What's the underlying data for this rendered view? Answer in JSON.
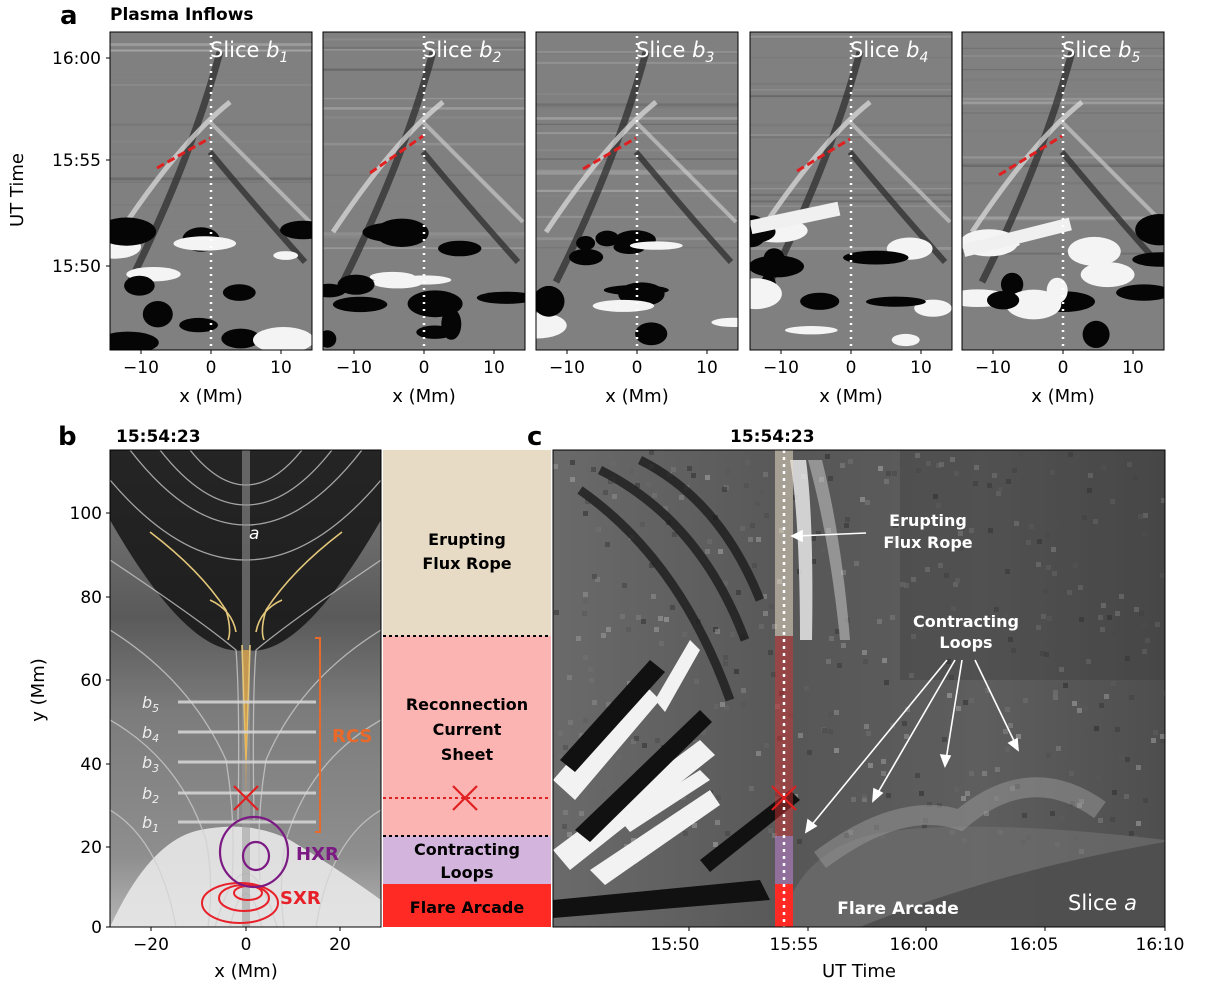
{
  "panel_a": {
    "letter": "a",
    "title": "Plasma Inflows",
    "ylabel": "UT Time",
    "yticks": [
      "16:00",
      "15:55",
      "15:50"
    ],
    "xlabel": "x (Mm)",
    "xticks": [
      "−10",
      "0",
      "10"
    ],
    "slices": [
      {
        "name": "Slice ",
        "sub": "1"
      },
      {
        "name": "Slice ",
        "sub": "2"
      },
      {
        "name": "Slice ",
        "sub": "3"
      },
      {
        "name": "Slice ",
        "sub": "4"
      },
      {
        "name": "Slice ",
        "sub": "5"
      }
    ]
  },
  "panel_b": {
    "letter": "b",
    "time": "15:54:23",
    "ylabel": "y (Mm)",
    "yticks": [
      "100",
      "80",
      "60",
      "40",
      "20",
      "0"
    ],
    "xlabel": "x (Mm)",
    "xticks": [
      "−20",
      "0",
      "20"
    ],
    "slice_label": "a",
    "slice_marks": [
      "b5",
      "b4",
      "b3",
      "b2",
      "b1"
    ],
    "annotations": {
      "rcs": "RCS",
      "hxr": "HXR",
      "sxr": "SXR"
    },
    "colors": {
      "rcs": "#e8692a",
      "hxr": "#7b1a83",
      "sxr": "#e8202a",
      "x_point": "#e02020"
    }
  },
  "legend_column": {
    "erupting": "Erupting Flux Rope",
    "rcs": "Reconnection Current Sheet",
    "contracting": "Contracting Loops",
    "arcade": "Flare Arcade",
    "colors": {
      "erupting": "#e8dbc6",
      "rcs": "#fbb4b2",
      "contracting": "#d2b4dd",
      "arcade": "#ff2a24"
    }
  },
  "panel_c": {
    "letter": "c",
    "time": "15:54:23",
    "xlabel": "UT Time",
    "xticks": [
      "15:50",
      "15:55",
      "16:00",
      "16:05",
      "16:10"
    ],
    "slice_label": "Slice ",
    "slice_label_italic": "a",
    "labels": {
      "erupting": "Erupting Flux Rope",
      "contracting": "Contracting Loops",
      "arcade": "Flare Arcade"
    }
  }
}
